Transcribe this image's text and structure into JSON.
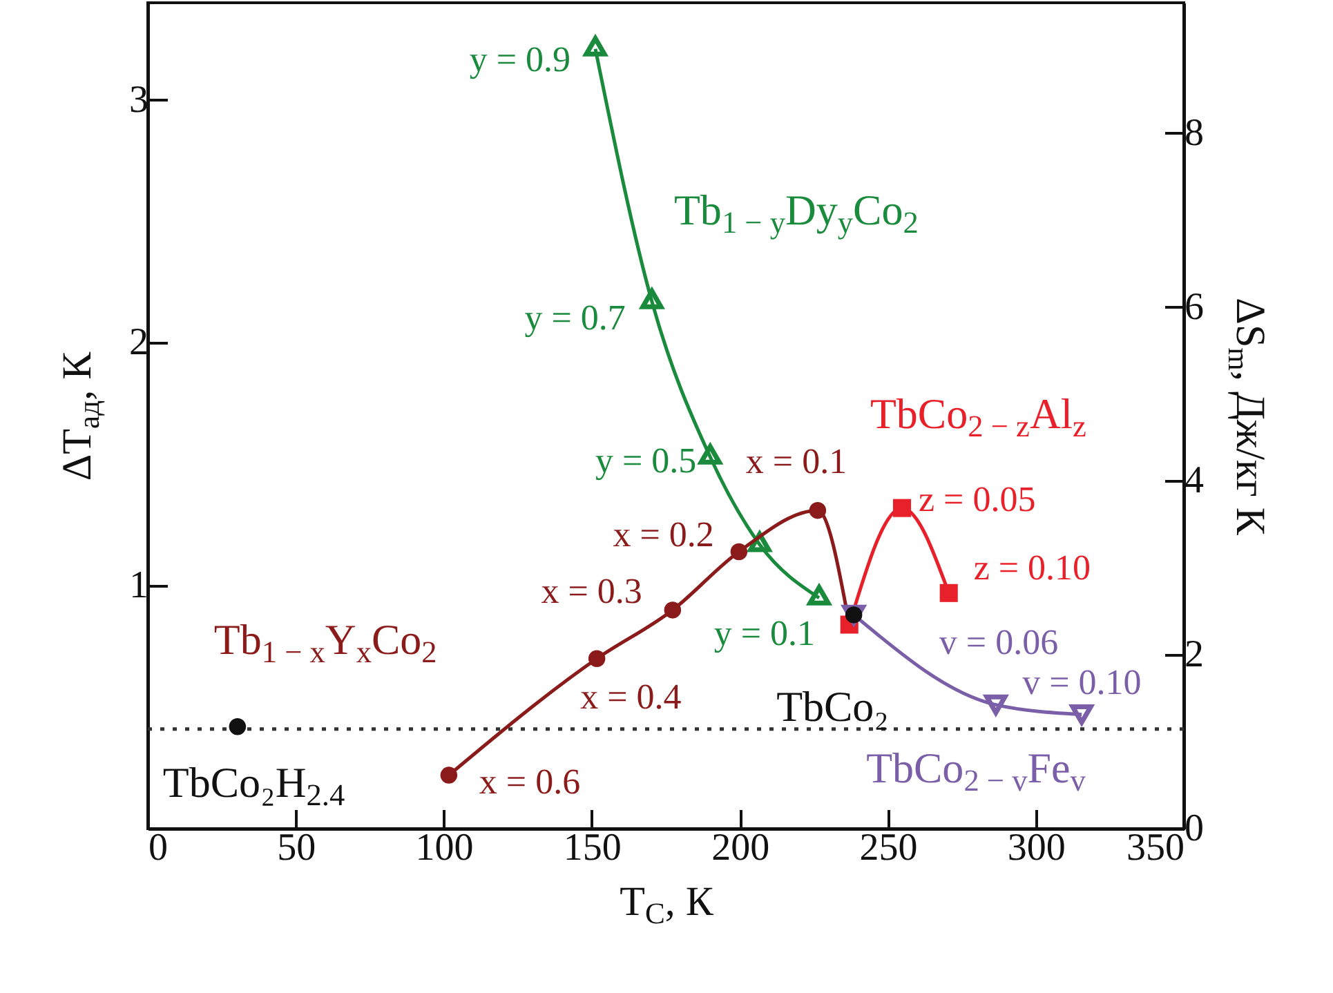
{
  "chart_data": {
    "type": "line",
    "xlabel": "T$_{C}$, К",
    "ylabel": "ΔT$_{ад}$, К",
    "y2label": "ΔS$_{m}$, Дж/кг К",
    "xlim": [
      0,
      350
    ],
    "xticks": [
      0,
      50,
      100,
      150,
      200,
      250,
      300,
      350
    ],
    "ylim": [
      0,
      3.4
    ],
    "yticks": [
      1,
      2,
      3
    ],
    "y2lim": [
      0,
      9.5
    ],
    "y2ticks": [
      0,
      2,
      4,
      6,
      8
    ],
    "grid": false,
    "line_style": "solid",
    "series": [
      {
        "name": "Tb$_{1 − y}$Dy$_{y}$Co$_{2}$",
        "color": "#1a8a3c",
        "marker": "triangle",
        "x": [
          151.2,
          170.3,
          190,
          206.7,
          226.8
        ],
        "values": [
          3.21,
          2.17,
          1.53,
          1.17,
          0.95
        ]
      },
      {
        "name": "Tb$_{1 − x}$Y$_{x}$Co$_{2}$",
        "color": "#8b1a1a",
        "marker": "circle",
        "x": [
          101.7,
          151.7,
          177.3,
          199.7,
          226.3,
          237
        ],
        "values": [
          0.22,
          0.7,
          0.9,
          1.14,
          1.31,
          0.84
        ]
      },
      {
        "name": "TbCo$_{2 − z}$Al$_{z}$",
        "color": "#e8202a",
        "marker": "square",
        "x": [
          237,
          254.8,
          270.6
        ],
        "values": [
          0.84,
          1.32,
          0.97
        ]
      },
      {
        "name": "TbCo$_{2 − v}$Fe$_{v}$",
        "color": "#7b5ea8",
        "marker": "triangle-down",
        "x": [
          238.5,
          286.5,
          315.5
        ],
        "values": [
          0.88,
          0.51,
          0.47
        ]
      },
      {
        "name": "TbCo₂",
        "type": "scatter",
        "color": "#111111",
        "marker": "circle",
        "x": [
          238.5
        ],
        "values": [
          0.88
        ]
      },
      {
        "name": "TbCo₂H$_{2.4}$",
        "type": "scatter",
        "color": "#111111",
        "marker": "circle",
        "x": [
          30.3
        ],
        "values": [
          0.42
        ]
      }
    ],
    "ref_lines": [
      {
        "axis": "y",
        "value": 0.41,
        "color": "#333333",
        "line_style": "dotted"
      }
    ],
    "annotations": [
      {
        "text": "y = 0.9",
        "x": 151.2,
        "y": 3.21
      },
      {
        "text": "y = 0.7",
        "x": 170.3,
        "y": 2.17
      },
      {
        "text": "y = 0.5",
        "x": 190,
        "y": 1.53
      },
      {
        "text": "y = 0.1",
        "x": 226.8,
        "y": 0.95
      },
      {
        "text": "x = 0.6",
        "x": 101.7,
        "y": 0.22
      },
      {
        "text": "x = 0.4",
        "x": 151.7,
        "y": 0.7
      },
      {
        "text": "x = 0.3",
        "x": 177.3,
        "y": 0.9
      },
      {
        "text": "x = 0.2",
        "x": 199.7,
        "y": 1.14
      },
      {
        "text": "x = 0.1",
        "x": 226.3,
        "y": 1.31
      },
      {
        "text": "z = 0.05",
        "x": 254.8,
        "y": 1.32
      },
      {
        "text": "z = 0.10",
        "x": 270.6,
        "y": 0.97
      },
      {
        "text": "v = 0.06",
        "x": 286.5,
        "y": 0.51
      },
      {
        "text": "v = 0.10",
        "x": 315.5,
        "y": 0.47
      }
    ]
  }
}
